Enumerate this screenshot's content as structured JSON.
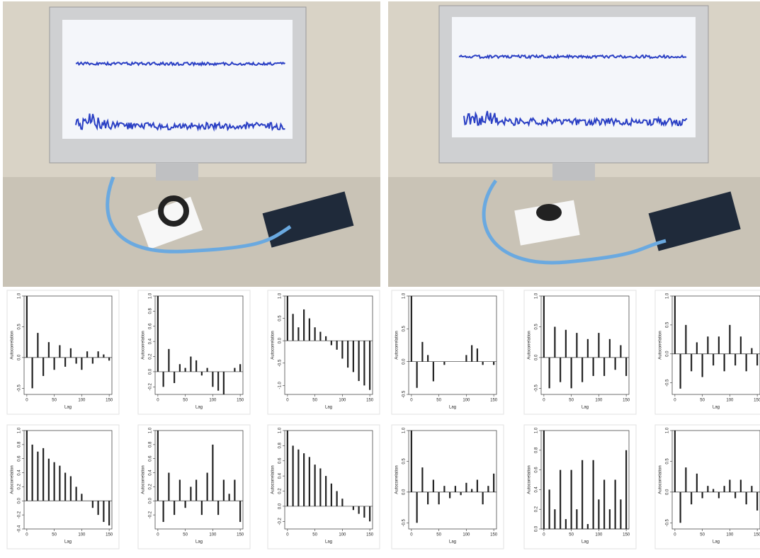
{
  "chart_data": [
    {
      "type": "bar",
      "xlabel": "Lag",
      "ylabel": "Autocorrelation",
      "x": [
        0,
        10,
        20,
        30,
        40,
        50,
        60,
        70,
        80,
        90,
        100,
        110,
        120,
        130,
        140,
        150
      ],
      "values": [
        1,
        -0.5,
        0.4,
        -0.3,
        0.25,
        -0.2,
        0.2,
        -0.15,
        0.15,
        -0.1,
        -0.2,
        0.1,
        -0.1,
        0.1,
        0.05,
        -0.05
      ],
      "xlim": [
        -5,
        155
      ],
      "ylim": [
        -0.6,
        1
      ],
      "xticks": [
        0,
        50,
        100,
        150
      ],
      "yticks": [
        -0.5,
        {
          "value": 0,
          "label": "0.0"
        },
        0.5,
        {
          "value": 1,
          "label": "1.0"
        }
      ]
    },
    {
      "type": "bar",
      "xlabel": "Lag",
      "ylabel": "Autocorrelation",
      "x": [
        0,
        10,
        20,
        30,
        40,
        50,
        60,
        70,
        80,
        90,
        100,
        110,
        120,
        130,
        140,
        150
      ],
      "values": [
        1,
        -0.2,
        0.3,
        -0.15,
        0.1,
        0.05,
        0.2,
        0.15,
        -0.05,
        0.05,
        -0.2,
        -0.25,
        -0.3,
        0,
        0.05,
        0.1
      ],
      "xlim": [
        -5,
        155
      ],
      "ylim": [
        -0.3,
        1
      ],
      "xticks": [
        0,
        50,
        100,
        150
      ],
      "yticks": [
        -0.2,
        {
          "value": 0,
          "label": "0.0"
        },
        0.2,
        0.4,
        0.6,
        0.8,
        {
          "value": 1,
          "label": "1.0"
        }
      ]
    },
    {
      "type": "bar",
      "xlabel": "Lag",
      "ylabel": "Autocorrelation",
      "x": [
        0,
        10,
        20,
        30,
        40,
        50,
        60,
        70,
        80,
        90,
        100,
        110,
        120,
        130,
        140,
        150
      ],
      "values": [
        1,
        0.6,
        0.3,
        0.7,
        0.5,
        0.3,
        0.2,
        0.1,
        -0.1,
        -0.2,
        -0.4,
        -0.6,
        -0.7,
        -0.9,
        -1,
        -1.1
      ],
      "xlim": [
        -5,
        155
      ],
      "ylim": [
        -1.2,
        1
      ],
      "xticks": [
        0,
        50,
        100,
        150
      ],
      "yticks": [
        {
          "value": -1,
          "label": "-1.0"
        },
        -0.5,
        {
          "value": 0,
          "label": "0.0"
        },
        0.5,
        {
          "value": 1,
          "label": "1.0"
        }
      ]
    },
    {
      "type": "bar",
      "xlabel": "Lag",
      "ylabel": "Autocorrelation",
      "x": [
        0,
        10,
        20,
        30,
        40,
        50,
        60,
        70,
        80,
        90,
        100,
        110,
        120,
        130,
        140,
        150
      ],
      "values": [
        1,
        -0.4,
        0.3,
        0.1,
        -0.3,
        0,
        -0.05,
        0,
        0,
        0,
        0.1,
        0.25,
        0.2,
        -0.05,
        0,
        -0.05
      ],
      "xlim": [
        -5,
        155
      ],
      "ylim": [
        -0.5,
        1
      ],
      "xticks": [
        0,
        50,
        100,
        150
      ],
      "yticks": [
        -0.5,
        {
          "value": 0,
          "label": "0.0"
        },
        0.5,
        {
          "value": 1,
          "label": "1.0"
        }
      ]
    },
    {
      "type": "bar",
      "xlabel": "Lag",
      "ylabel": "Autocorrelation",
      "x": [
        0,
        10,
        20,
        30,
        40,
        50,
        60,
        70,
        80,
        90,
        100,
        110,
        120,
        130,
        140,
        150
      ],
      "values": [
        1,
        -0.5,
        0.5,
        -0.4,
        0.45,
        -0.5,
        0.4,
        -0.4,
        0.3,
        -0.3,
        0.4,
        -0.3,
        0.3,
        -0.2,
        0.2,
        -0.3
      ],
      "xlim": [
        -5,
        155
      ],
      "ylim": [
        -0.6,
        1
      ],
      "xticks": [
        0,
        50,
        100,
        150
      ],
      "yticks": [
        -0.5,
        {
          "value": 0,
          "label": "0.0"
        },
        0.5,
        {
          "value": 1,
          "label": "1.0"
        }
      ]
    },
    {
      "type": "bar",
      "xlabel": "Lag",
      "ylabel": "Autocorrelation",
      "x": [
        0,
        10,
        20,
        30,
        40,
        50,
        60,
        70,
        80,
        90,
        100,
        110,
        120,
        130,
        140,
        150
      ],
      "values": [
        1,
        -0.6,
        0.5,
        -0.3,
        0.2,
        -0.4,
        0.3,
        -0.2,
        0.3,
        -0.3,
        0.5,
        -0.2,
        0.3,
        -0.3,
        0.1,
        -0.2
      ],
      "xlim": [
        -5,
        155
      ],
      "ylim": [
        -0.7,
        1
      ],
      "xticks": [
        0,
        50,
        100,
        150
      ],
      "yticks": [
        -0.5,
        {
          "value": 0,
          "label": "0.0"
        },
        0.5,
        {
          "value": 1,
          "label": "1.0"
        }
      ]
    },
    {
      "type": "bar",
      "xlabel": "Lag",
      "ylabel": "Autocorrelation",
      "x": [
        0,
        10,
        20,
        30,
        40,
        50,
        60,
        70,
        80,
        90,
        100,
        110,
        120,
        130,
        140,
        150
      ],
      "values": [
        1,
        0.8,
        0.7,
        0.75,
        0.6,
        0.55,
        0.5,
        0.4,
        0.35,
        0.2,
        0.1,
        0,
        -0.1,
        -0.2,
        -0.3,
        -0.35
      ],
      "xlim": [
        -5,
        155
      ],
      "ylim": [
        -0.4,
        1
      ],
      "xticks": [
        0,
        50,
        100,
        150
      ],
      "yticks": [
        -0.4,
        -0.2,
        {
          "value": 0,
          "label": "0.0"
        },
        0.2,
        0.4,
        0.6,
        0.8,
        {
          "value": 1,
          "label": "1.0"
        }
      ]
    },
    {
      "type": "bar",
      "xlabel": "Lag",
      "ylabel": "Autocorrelation",
      "x": [
        0,
        10,
        20,
        30,
        40,
        50,
        60,
        70,
        80,
        90,
        100,
        110,
        120,
        130,
        140,
        150
      ],
      "values": [
        1,
        -0.3,
        0.4,
        -0.2,
        0.3,
        -0.1,
        0.2,
        0.3,
        -0.2,
        0.4,
        0.8,
        -0.2,
        0.3,
        0.1,
        0.3,
        -0.3
      ],
      "xlim": [
        -5,
        155
      ],
      "ylim": [
        -0.4,
        1
      ],
      "xticks": [
        0,
        50,
        100,
        150
      ],
      "yticks": [
        -0.2,
        {
          "value": 0,
          "label": "0.0"
        },
        0.2,
        0.4,
        0.6,
        0.8,
        {
          "value": 1,
          "label": "1.0"
        }
      ]
    },
    {
      "type": "bar",
      "xlabel": "Lag",
      "ylabel": "Autocorrelation",
      "x": [
        0,
        10,
        20,
        30,
        40,
        50,
        60,
        70,
        80,
        90,
        100,
        110,
        120,
        130,
        140,
        150
      ],
      "values": [
        1,
        0.8,
        0.75,
        0.7,
        0.65,
        0.55,
        0.5,
        0.4,
        0.3,
        0.2,
        0.1,
        0,
        -0.05,
        -0.1,
        -0.15,
        -0.2
      ],
      "xlim": [
        -5,
        155
      ],
      "ylim": [
        -0.3,
        1
      ],
      "xticks": [
        0,
        50,
        100,
        150
      ],
      "yticks": [
        -0.2,
        {
          "value": 0,
          "label": "0.0"
        },
        0.2,
        0.4,
        0.6,
        0.8,
        {
          "value": 1,
          "label": "1.0"
        }
      ]
    },
    {
      "type": "bar",
      "xlabel": "Lag",
      "ylabel": "Autocorrelation",
      "x": [
        0,
        10,
        20,
        30,
        40,
        50,
        60,
        70,
        80,
        90,
        100,
        110,
        120,
        130,
        140,
        150
      ],
      "values": [
        1,
        -0.5,
        0.4,
        -0.2,
        0.2,
        -0.2,
        0.1,
        -0.1,
        0.1,
        -0.05,
        0.15,
        0.05,
        0.2,
        -0.2,
        0.1,
        0.3
      ],
      "xlim": [
        -5,
        155
      ],
      "ylim": [
        -0.6,
        1
      ],
      "xticks": [
        0,
        50,
        100,
        150
      ],
      "yticks": [
        -0.5,
        {
          "value": 0,
          "label": "0.0"
        },
        0.5,
        {
          "value": 1,
          "label": "1.0"
        }
      ]
    },
    {
      "type": "bar",
      "xlabel": "Lag",
      "ylabel": "Autocorrelation",
      "x": [
        0,
        10,
        20,
        30,
        40,
        50,
        60,
        70,
        80,
        90,
        100,
        110,
        120,
        130,
        140,
        150
      ],
      "values": [
        1,
        0.4,
        0.2,
        0.6,
        0.1,
        0.6,
        0.2,
        0.7,
        0.05,
        0.7,
        0.3,
        0.5,
        0.2,
        0.5,
        0.3,
        0.8
      ],
      "xlim": [
        -5,
        155
      ],
      "ylim": [
        0,
        1
      ],
      "xticks": [
        0,
        50,
        100,
        150
      ],
      "yticks": [
        {
          "value": 0,
          "label": "0.0"
        },
        0.2,
        0.4,
        0.6,
        0.8,
        {
          "value": 1,
          "label": "1.0"
        }
      ]
    },
    {
      "type": "bar",
      "xlabel": "Lag",
      "ylabel": "Autocorrelation",
      "x": [
        0,
        10,
        20,
        30,
        40,
        50,
        60,
        70,
        80,
        90,
        100,
        110,
        120,
        130,
        140,
        150
      ],
      "values": [
        1,
        -0.5,
        0.4,
        -0.2,
        0.3,
        -0.1,
        0.1,
        0.05,
        -0.1,
        0.1,
        0.2,
        -0.1,
        0.2,
        -0.2,
        0.1,
        -0.3
      ],
      "xlim": [
        -5,
        155
      ],
      "ylim": [
        -0.6,
        1
      ],
      "xticks": [
        0,
        50,
        100,
        150
      ],
      "yticks": [
        -0.5,
        {
          "value": 0,
          "label": "0.0"
        },
        0.5,
        {
          "value": 1,
          "label": "1.0"
        }
      ]
    }
  ]
}
